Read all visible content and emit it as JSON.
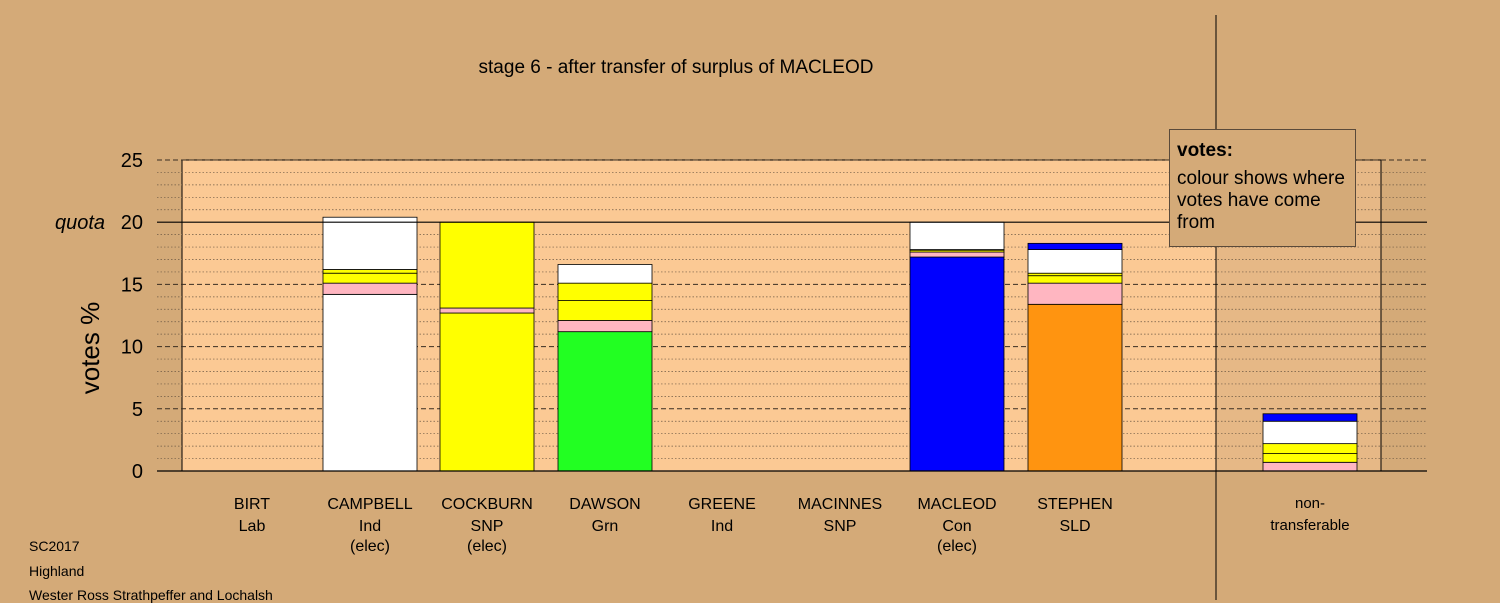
{
  "chart_data": {
    "type": "bar",
    "title": "stage 6 - after transfer of surplus of MACLEOD",
    "ylabel": "votes %",
    "ylim": [
      0,
      25
    ],
    "yticks": [
      0,
      5,
      10,
      15,
      20,
      25
    ],
    "quota": {
      "label": "quota",
      "value": 20
    },
    "grid": true,
    "categories": [
      {
        "name": "BIRT",
        "party": "Lab",
        "status": ""
      },
      {
        "name": "CAMPBELL",
        "party": "Ind",
        "status": "(elec)"
      },
      {
        "name": "COCKBURN",
        "party": "SNP",
        "status": "(elec)"
      },
      {
        "name": "DAWSON",
        "party": "Grn",
        "status": ""
      },
      {
        "name": "GREENE",
        "party": "Ind",
        "status": ""
      },
      {
        "name": "MACINNES",
        "party": "SNP",
        "status": ""
      },
      {
        "name": "MACLEOD",
        "party": "Con",
        "status": "(elec)"
      },
      {
        "name": "STEPHEN",
        "party": "SLD",
        "status": ""
      }
    ],
    "stacks": [
      [],
      [
        {
          "value": 14.2,
          "color": "#ffffff"
        },
        {
          "value": 0.9,
          "color": "#ffb6c1"
        },
        {
          "value": 0.8,
          "color": "#ffff00"
        },
        {
          "value": 0.3,
          "color": "#ffff00"
        },
        {
          "value": 4.2,
          "color": "#ffffff"
        }
      ],
      [
        {
          "value": 12.7,
          "color": "#ffff00"
        },
        {
          "value": 0.4,
          "color": "#ffb6c1"
        },
        {
          "value": 6.9,
          "color": "#ffff00"
        }
      ],
      [
        {
          "value": 11.2,
          "color": "#22ff22"
        },
        {
          "value": 0.9,
          "color": "#ffb6c1"
        },
        {
          "value": 1.6,
          "color": "#ffff00"
        },
        {
          "value": 1.4,
          "color": "#ffff00"
        },
        {
          "value": 1.5,
          "color": "#ffffff"
        }
      ],
      [],
      [],
      [
        {
          "value": 17.2,
          "color": "#0000ff"
        },
        {
          "value": 0.4,
          "color": "#ffb6c1"
        },
        {
          "value": 0.15,
          "color": "#ffff00"
        },
        {
          "value": 0.05,
          "color": "#22ff22"
        },
        {
          "value": 2.2,
          "color": "#ffffff"
        }
      ],
      [
        {
          "value": 13.4,
          "color": "#ff9410"
        },
        {
          "value": 1.7,
          "color": "#ffb6c1"
        },
        {
          "value": 0.6,
          "color": "#ffff00"
        },
        {
          "value": 0.2,
          "color": "#ffff00"
        },
        {
          "value": 1.9,
          "color": "#ffffff"
        },
        {
          "value": 0.5,
          "color": "#0000ff"
        }
      ]
    ],
    "nontransferable": {
      "label_line1": "non-",
      "label_line2": "transferable",
      "stack": [
        {
          "value": 0.7,
          "color": "#ffb6c1"
        },
        {
          "value": 0.7,
          "color": "#ffff00"
        },
        {
          "value": 0.8,
          "color": "#ffff00"
        },
        {
          "value": 1.8,
          "color": "#ffffff"
        },
        {
          "value": 0.6,
          "color": "#0000ff"
        }
      ]
    },
    "legend": {
      "title": "votes:",
      "text": "colour shows where votes have come from"
    }
  },
  "footer": {
    "line1": "SC2017",
    "line2": "Highland",
    "line3": "Wester Ross Strathpeffer and Lochalsh"
  },
  "colors": {
    "background": "#d4aa78",
    "plot_background": "#fbc994",
    "nontransferable_background": "#e6b886"
  }
}
